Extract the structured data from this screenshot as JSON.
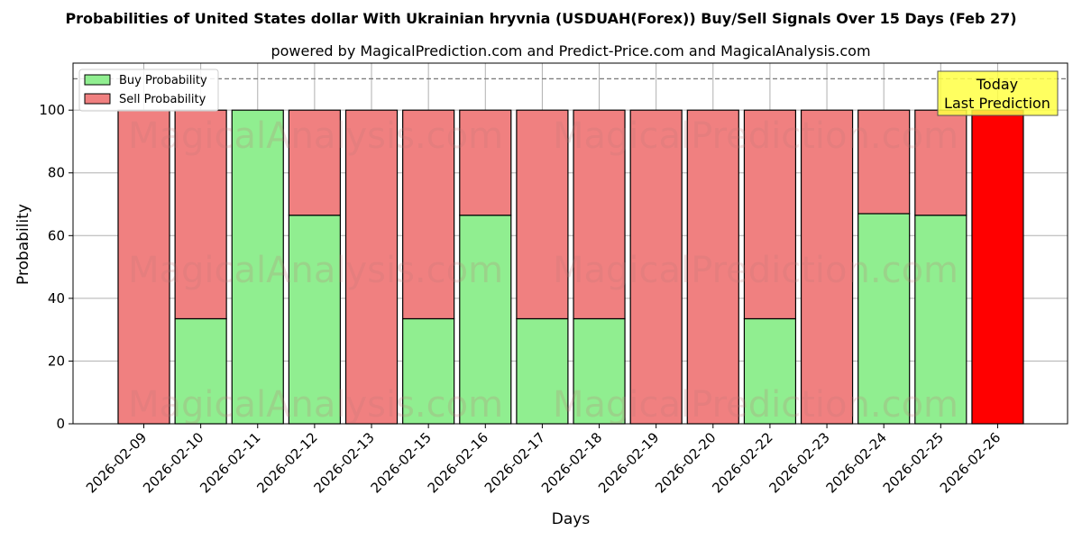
{
  "chart_data": {
    "type": "bar",
    "stacked": true,
    "title": "Probabilities of United States dollar With Ukrainian hryvnia (USDUAH(Forex)) Buy/Sell Signals Over 15 Days (Feb 27)",
    "subtitle": "powered by MagicalPrediction.com and Predict-Price.com and MagicalAnalysis.com",
    "xlabel": "Days",
    "ylabel": "Probability",
    "ylim": [
      0,
      115
    ],
    "yticks": [
      0,
      20,
      40,
      60,
      80,
      100
    ],
    "grid": true,
    "legend_position": "top-left",
    "reference_line": 110,
    "categories": [
      "2026-02-09",
      "2026-02-10",
      "2026-02-11",
      "2026-02-12",
      "2026-02-13",
      "2026-02-15",
      "2026-02-16",
      "2026-02-17",
      "2026-02-18",
      "2026-02-19",
      "2026-02-20",
      "2026-02-22",
      "2026-02-23",
      "2026-02-24",
      "2026-02-25",
      "2026-02-26"
    ],
    "series": [
      {
        "name": "Buy Probability",
        "color": "#90ee90",
        "values": [
          0,
          33.5,
          100,
          66.5,
          0,
          33.5,
          66.5,
          33.5,
          33.5,
          0,
          0,
          33.5,
          0,
          67,
          66.5,
          0
        ]
      },
      {
        "name": "Sell Probability",
        "color": "#f08080",
        "values": [
          100,
          66.5,
          0,
          33.5,
          100,
          66.5,
          33.5,
          66.5,
          66.5,
          100,
          100,
          66.5,
          100,
          33,
          33.5,
          100
        ]
      }
    ],
    "highlight": {
      "index": 15,
      "color": "#ff0000"
    },
    "annotation": {
      "line1": "Today",
      "line2": "Last Prediction",
      "color": "#ffff44"
    },
    "watermarks": [
      "MagicalAnalysis.com",
      "MagicalPrediction.com"
    ]
  }
}
